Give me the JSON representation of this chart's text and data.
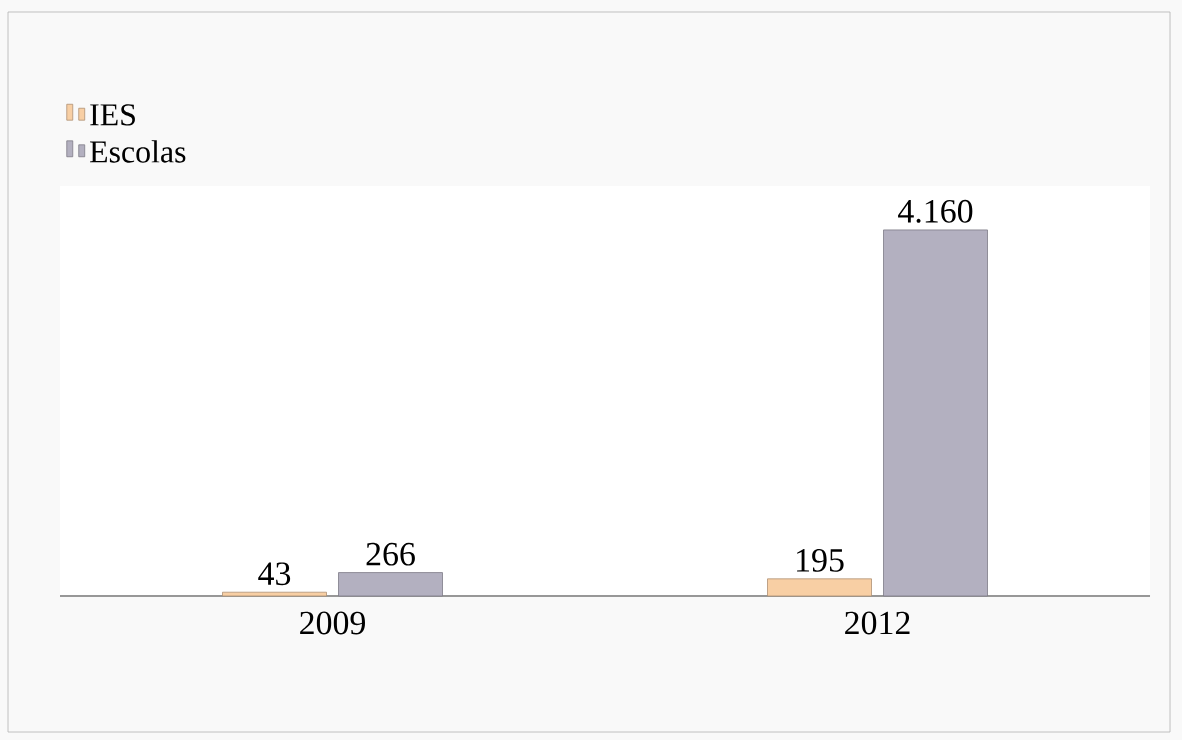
{
  "chart_data": {
    "type": "bar",
    "categories": [
      "2009",
      "2012"
    ],
    "series": [
      {
        "name": "IES",
        "color": "#f8cfa4",
        "values": [
          43,
          195
        ],
        "value_labels": [
          "43",
          "195"
        ]
      },
      {
        "name": "Escolas",
        "color": "#b3b0c0",
        "values": [
          266,
          4160
        ],
        "value_labels": [
          "266",
          "4.160"
        ]
      }
    ],
    "legend": "top left"
  }
}
